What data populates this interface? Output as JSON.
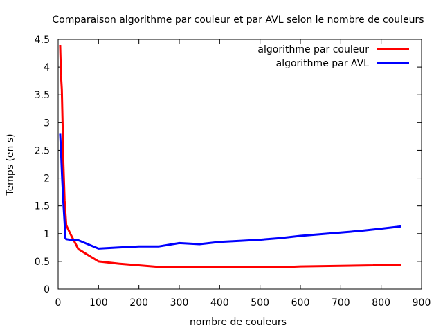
{
  "chart_data": {
    "type": "line",
    "title": "Comparaison algorithme par couleur et par AVL selon le nombre de couleurs",
    "xlabel": "nombre de couleurs",
    "ylabel": "Temps (en s)",
    "xlim": [
      0,
      900
    ],
    "ylim": [
      0,
      4.5
    ],
    "x_ticks": [
      "0",
      "100",
      "200",
      "300",
      "400",
      "500",
      "600",
      "700",
      "800",
      "900"
    ],
    "y_ticks": [
      "0",
      "0.5",
      "1",
      "1.5",
      "2",
      "2.5",
      "3",
      "3.5",
      "4",
      "4.5"
    ],
    "grid": false,
    "legend_position": "top-right",
    "series": [
      {
        "name": "algorithme par couleur",
        "color": "#ff0000",
        "x": [
          5,
          7,
          9,
          11,
          13,
          16,
          20,
          30,
          50,
          100,
          150,
          200,
          250,
          300,
          400,
          500,
          570,
          600,
          700,
          780,
          800,
          850
        ],
        "y": [
          4.4,
          3.85,
          3.6,
          3.0,
          2.25,
          1.6,
          1.15,
          1.0,
          0.72,
          0.5,
          0.46,
          0.43,
          0.4,
          0.4,
          0.4,
          0.4,
          0.4,
          0.41,
          0.42,
          0.43,
          0.44,
          0.43
        ]
      },
      {
        "name": "algorithme par AVL",
        "color": "#0000ff",
        "x": [
          5,
          7,
          10,
          13,
          16,
          18,
          20,
          30,
          50,
          100,
          150,
          200,
          250,
          300,
          350,
          400,
          450,
          500,
          550,
          600,
          650,
          700,
          750,
          800,
          850
        ],
        "y": [
          2.8,
          2.5,
          2.0,
          1.55,
          1.2,
          0.92,
          0.9,
          0.89,
          0.88,
          0.73,
          0.75,
          0.77,
          0.77,
          0.83,
          0.81,
          0.85,
          0.87,
          0.89,
          0.92,
          0.96,
          0.99,
          1.02,
          1.05,
          1.09,
          1.13
        ]
      }
    ]
  }
}
